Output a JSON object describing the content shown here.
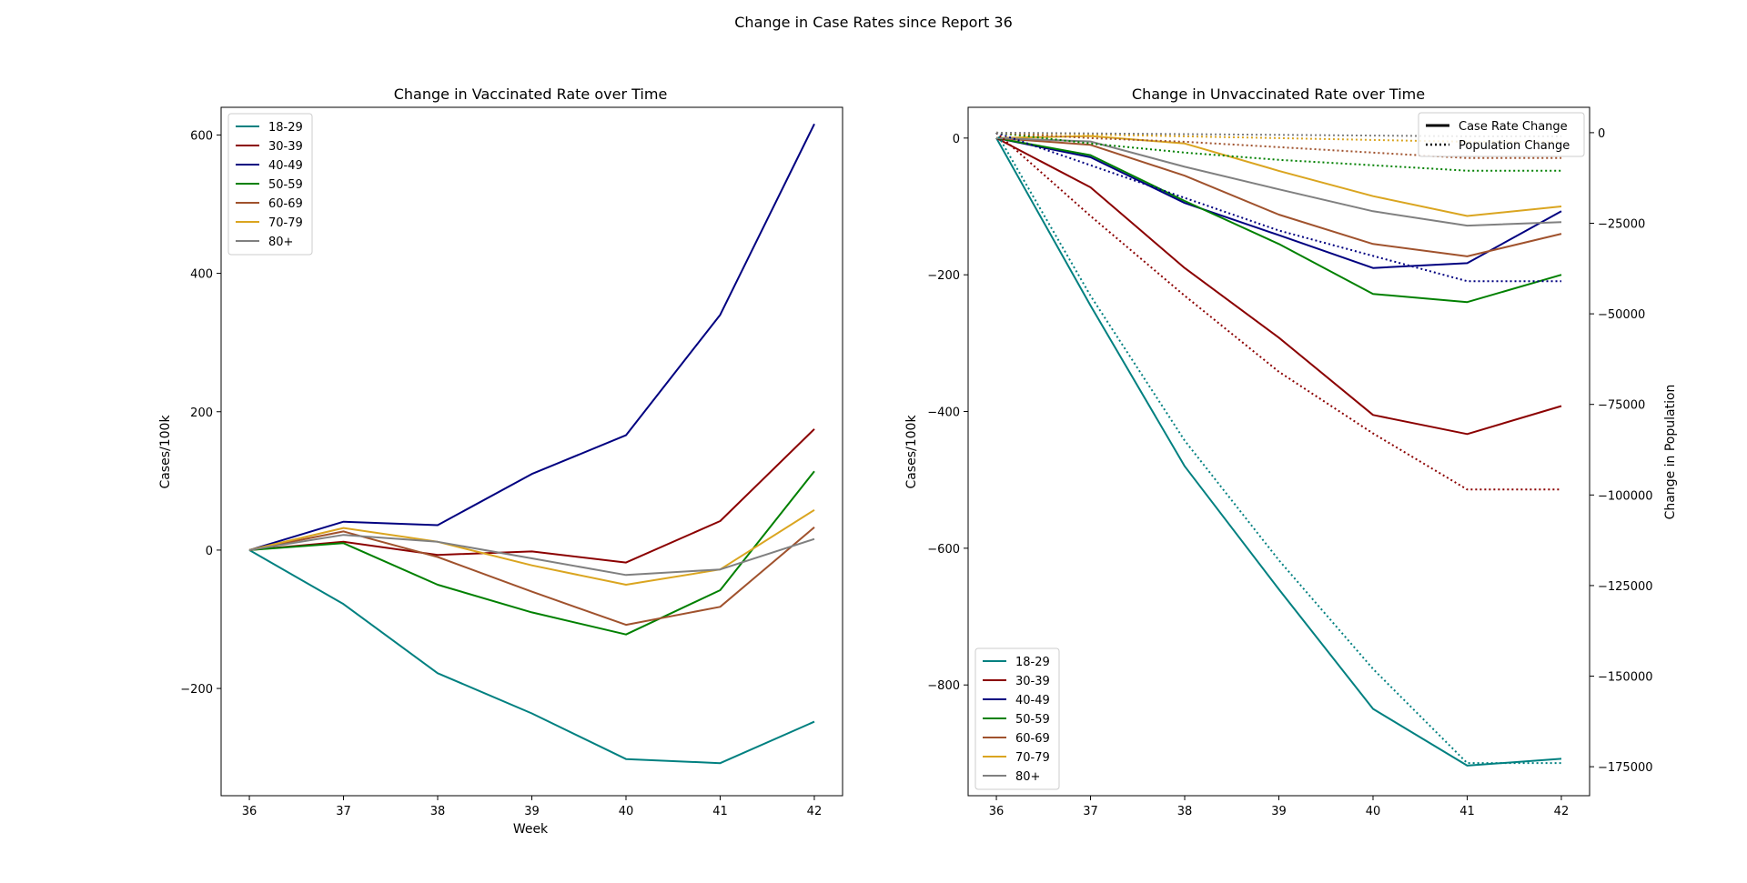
{
  "figure": {
    "title": "Change in Case Rates since Report 36"
  },
  "colors": {
    "18-29": "#008080",
    "30-39": "#8b0000",
    "40-49": "#000080",
    "50-59": "#008000",
    "60-69": "#a0522d",
    "70-79": "#daa520",
    "80+": "#808080"
  },
  "chart_data": [
    {
      "type": "line",
      "title": "Change in Vaccinated Rate over Time",
      "xlabel": "Week",
      "ylabel": "Cases/100k",
      "x": [
        36,
        37,
        38,
        39,
        40,
        41,
        42
      ],
      "xticks": [
        36,
        37,
        38,
        39,
        40,
        41,
        42
      ],
      "ylim": [
        -355,
        640
      ],
      "yticks": [
        -200,
        0,
        200,
        400,
        600
      ],
      "legend": {
        "placement": "upper-left"
      },
      "series": [
        {
          "name": "18-29",
          "values": [
            0,
            -78,
            -178,
            -236,
            -302,
            -308,
            -248
          ]
        },
        {
          "name": "30-39",
          "values": [
            0,
            12,
            -7,
            -2,
            -18,
            42,
            175
          ]
        },
        {
          "name": "40-49",
          "values": [
            0,
            41,
            36,
            110,
            166,
            340,
            616
          ]
        },
        {
          "name": "50-59",
          "values": [
            0,
            10,
            -50,
            -90,
            -122,
            -58,
            114
          ]
        },
        {
          "name": "60-69",
          "values": [
            0,
            27,
            -10,
            -60,
            -108,
            -82,
            33
          ]
        },
        {
          "name": "70-79",
          "values": [
            0,
            32,
            12,
            -22,
            -50,
            -28,
            58
          ]
        },
        {
          "name": "80+",
          "values": [
            0,
            22,
            12,
            -12,
            -36,
            -28,
            16
          ]
        }
      ]
    },
    {
      "type": "line",
      "title": "Change in Unvaccinated Rate over Time",
      "ylabel": "Cases/100k",
      "y2label": "Change in Population",
      "x": [
        36,
        37,
        38,
        39,
        40,
        41,
        42
      ],
      "xticks": [
        36,
        37,
        38,
        39,
        40,
        41,
        42
      ],
      "ylim": [
        -962,
        45
      ],
      "yticks": [
        -800,
        -600,
        -400,
        -200,
        0
      ],
      "y2lim": [
        -183000,
        7000
      ],
      "y2ticks": [
        -175000,
        -150000,
        -125000,
        -100000,
        -75000,
        -50000,
        -25000,
        0
      ],
      "legend": {
        "placement": "lower-left"
      },
      "style_legend": {
        "placement": "upper-right",
        "entries": [
          "Case Rate Change",
          "Population Change"
        ]
      },
      "series": [
        {
          "name": "18-29",
          "values": [
            0,
            -245,
            -480,
            -660,
            -835,
            -918,
            -908
          ]
        },
        {
          "name": "30-39",
          "values": [
            0,
            -72,
            -190,
            -292,
            -405,
            -433,
            -392
          ]
        },
        {
          "name": "40-49",
          "values": [
            0,
            -28,
            -95,
            -142,
            -190,
            -183,
            -107
          ]
        },
        {
          "name": "50-59",
          "values": [
            0,
            -25,
            -92,
            -155,
            -228,
            -240,
            -200
          ]
        },
        {
          "name": "60-69",
          "values": [
            0,
            -10,
            -55,
            -112,
            -155,
            -173,
            -140
          ]
        },
        {
          "name": "70-79",
          "values": [
            0,
            3,
            -8,
            -48,
            -85,
            -114,
            -100
          ]
        },
        {
          "name": "80+",
          "values": [
            0,
            -5,
            -42,
            -75,
            -107,
            -128,
            -123
          ]
        }
      ],
      "population_series": [
        {
          "name": "18-29",
          "values": [
            0,
            -45000,
            -85000,
            -118000,
            -148000,
            -174000,
            -174000
          ]
        },
        {
          "name": "30-39",
          "values": [
            0,
            -23000,
            -45000,
            -66000,
            -83000,
            -98500,
            -98500
          ]
        },
        {
          "name": "40-49",
          "values": [
            0,
            -9000,
            -18000,
            -27000,
            -34000,
            -41000,
            -41000
          ]
        },
        {
          "name": "50-59",
          "values": [
            0,
            -3000,
            -5500,
            -7500,
            -9000,
            -10500,
            -10500
          ]
        },
        {
          "name": "60-69",
          "values": [
            0,
            -1500,
            -2500,
            -4000,
            -5500,
            -7000,
            -7000
          ]
        },
        {
          "name": "70-79",
          "values": [
            0,
            -500,
            -1000,
            -1500,
            -2000,
            -2500,
            -2500
          ]
        },
        {
          "name": "80+",
          "values": [
            0,
            -200,
            -400,
            -600,
            -800,
            -1000,
            -1000
          ]
        }
      ]
    }
  ]
}
